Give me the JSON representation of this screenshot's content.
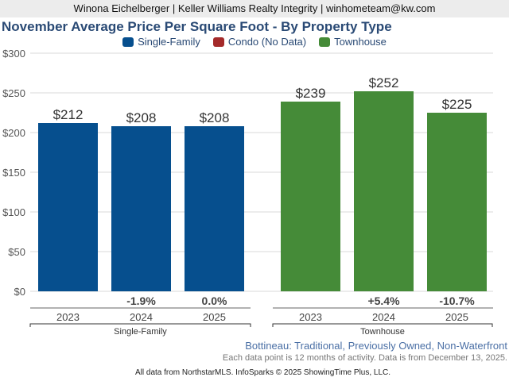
{
  "header": {
    "agent_line": "Winona Eichelberger | Keller Williams Realty Integrity | winhometeam@kw.com"
  },
  "legend": [
    {
      "label": "Single-Family",
      "color": "#064f8e"
    },
    {
      "label": "Condo (No Data)",
      "color": "#a42a2a"
    },
    {
      "label": "Townhouse",
      "color": "#458b38"
    }
  ],
  "footer": {
    "subtitle": "Bottineau: Traditional, Previously Owned, Non-Waterfront",
    "note": "Each data point is 12 months of activity. Data is from December 13, 2025.",
    "source": "All data from NorthstarMLS. InfoSparks © 2025 ShowingTime Plus, LLC."
  },
  "chart_data": {
    "type": "bar",
    "title": "November Average Price Per Square Foot - By Property Type",
    "xlabel": "",
    "ylabel": "",
    "ylim": [
      0,
      300
    ],
    "yticks": [
      0,
      50,
      100,
      150,
      200,
      250,
      300
    ],
    "ytick_labels": [
      "$0",
      "$50",
      "$100",
      "$150",
      "$200",
      "$250",
      "$300"
    ],
    "grid": true,
    "legend_position": "top-center",
    "groups": [
      {
        "name": "Single-Family",
        "color": "#064f8e",
        "categories": [
          "2023",
          "2024",
          "2025"
        ],
        "values": [
          212,
          208,
          208
        ],
        "value_labels": [
          "$212",
          "$208",
          "$208"
        ],
        "change_labels": [
          "",
          "-1.9%",
          "0.0%"
        ]
      },
      {
        "name": "Townhouse",
        "color": "#458b38",
        "categories": [
          "2023",
          "2024",
          "2025"
        ],
        "values": [
          239,
          252,
          225
        ],
        "value_labels": [
          "$239",
          "$252",
          "$225"
        ],
        "change_labels": [
          "",
          "+5.4%",
          "-10.7%"
        ]
      }
    ]
  }
}
